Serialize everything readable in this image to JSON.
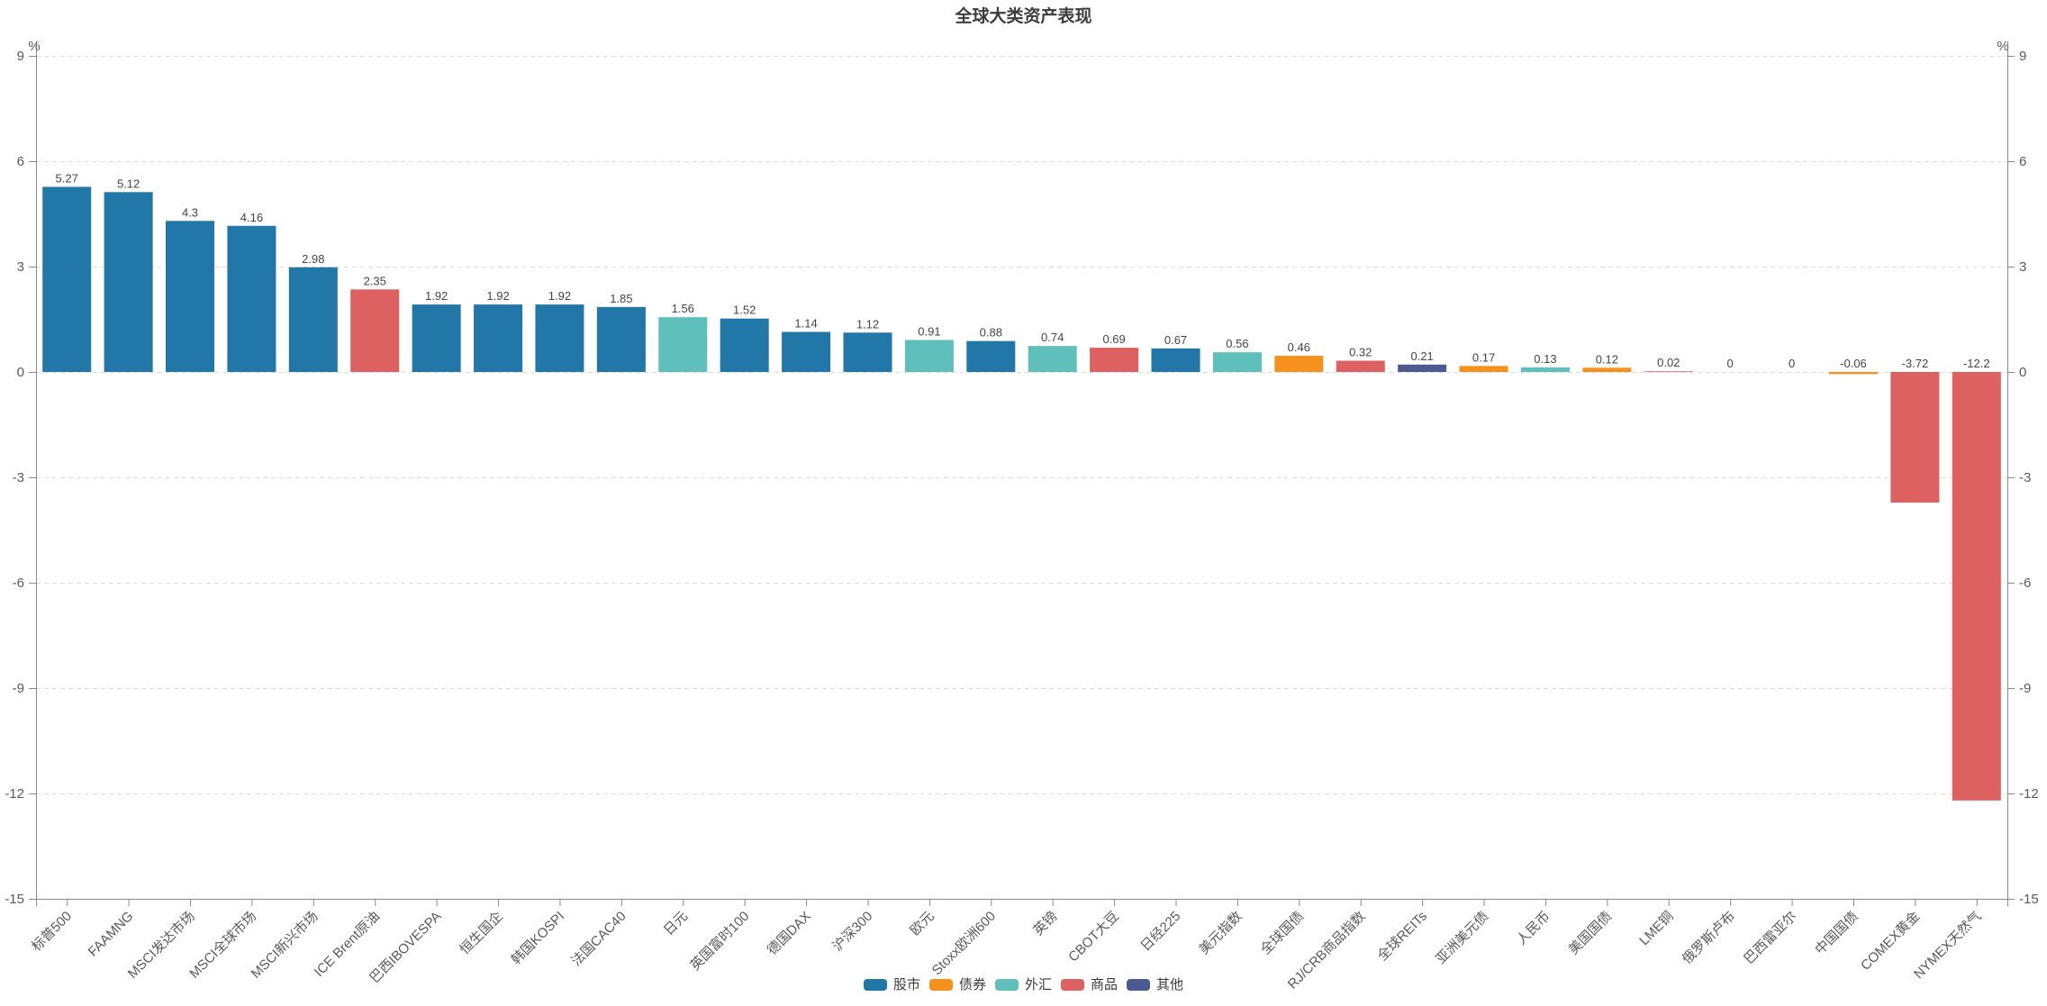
{
  "chart_data": {
    "type": "bar",
    "title": "全球大类资产表现",
    "unit": "%",
    "ylim": [
      -15,
      9
    ],
    "yticks": [
      9,
      6,
      3,
      0,
      -3,
      -6,
      -9,
      -12,
      -15
    ],
    "grid": "horizontal-dashed",
    "legend_position": "bottom-center",
    "categories": [
      "标普500",
      "FAAMNG",
      "MSCI发达市场",
      "MSCI全球市场",
      "MSCI新兴市场",
      "ICE Brent原油",
      "巴西IBOVESPA",
      "恒生国企",
      "韩国KOSPI",
      "法国CAC40",
      "日元",
      "英国富时100",
      "德国DAX",
      "沪深300",
      "欧元",
      "Stoxx欧洲600",
      "英镑",
      "CBOT大豆",
      "日经225",
      "美元指数",
      "全球国债",
      "RJ/CRB商品指数",
      "全球REITs",
      "亚洲美元债",
      "人民币",
      "美国国债",
      "LME铜",
      "俄罗斯卢布",
      "巴西雷亚尔",
      "中国国债",
      "COMEX黄金",
      "NYMEX天然气"
    ],
    "values": [
      5.27,
      5.12,
      4.3,
      4.16,
      2.98,
      2.35,
      1.92,
      1.92,
      1.92,
      1.85,
      1.56,
      1.52,
      1.14,
      1.12,
      0.91,
      0.88,
      0.74,
      0.69,
      0.67,
      0.56,
      0.46,
      0.32,
      0.21,
      0.17,
      0.13,
      0.12,
      0.02,
      0,
      0,
      -0.06,
      -3.72,
      -12.2
    ],
    "value_labels": [
      "5.27",
      "5.12",
      "4.3",
      "4.16",
      "2.98",
      "2.35",
      "1.92",
      "1.92",
      "1.92",
      "1.85",
      "1.56",
      "1.52",
      "1.14",
      "1.12",
      "0.91",
      "0.88",
      "0.74",
      "0.69",
      "0.67",
      "0.56",
      "0.46",
      "0.32",
      "0.21",
      "0.17",
      "0.13",
      "0.12",
      "0.02",
      "0",
      "0",
      "-0.06",
      "-3.72",
      "-12.2"
    ],
    "bar_groups": [
      "股市",
      "股市",
      "股市",
      "股市",
      "股市",
      "商品",
      "股市",
      "股市",
      "股市",
      "股市",
      "外汇",
      "股市",
      "股市",
      "股市",
      "外汇",
      "股市",
      "外汇",
      "商品",
      "股市",
      "外汇",
      "债券",
      "商品",
      "其他",
      "债券",
      "外汇",
      "债券",
      "商品",
      "外汇",
      "外汇",
      "债券",
      "商品",
      "商品"
    ],
    "legend": [
      {
        "name": "股市",
        "color": "#2077A8"
      },
      {
        "name": "债券",
        "color": "#F6911C"
      },
      {
        "name": "外汇",
        "color": "#5FBFBA"
      },
      {
        "name": "商品",
        "color": "#DD6161"
      },
      {
        "name": "其他",
        "color": "#4D5A92"
      }
    ]
  },
  "style": {
    "axis_line_color": "#8a8a8a",
    "grid_color": "#dddddd",
    "axis_label_color": "#5a5a5a",
    "value_label_color": "#454545",
    "title_color": "#3d3d3d",
    "background": "#ffffff"
  }
}
